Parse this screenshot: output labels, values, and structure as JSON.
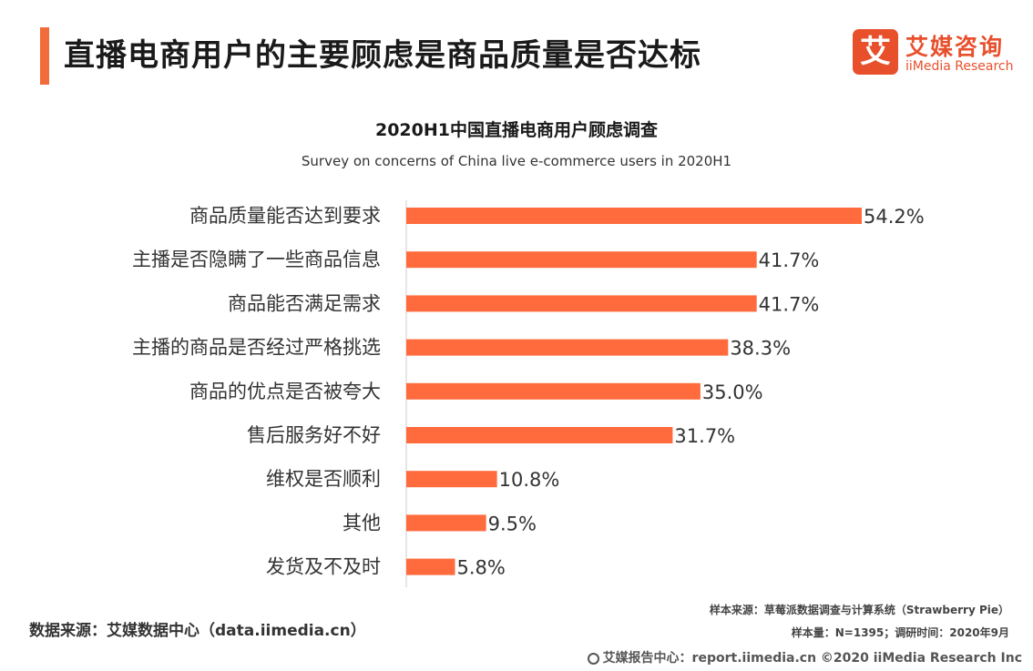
{
  "header": {
    "title": "直播电商用户的主要顾虑是商品质量是否达标",
    "logo_mark": "艾",
    "logo_cn": "艾媒咨询",
    "logo_en": "iiMedia Research"
  },
  "chart_data": {
    "type": "bar",
    "orientation": "horizontal",
    "title": "2020H1中国直播电商用户顾虑调查",
    "subtitle": "Survey on concerns of China live e-commerce users  in 2020H1",
    "categories": [
      "商品质量能否达到要求",
      "主播是否隐瞒了一些商品信息",
      "商品能否满足需求",
      "主播的商品是否经过严格挑选",
      "商品的优点是否被夸大",
      "售后服务好不好",
      "维权是否顺利",
      "其他",
      "发货及不及时"
    ],
    "values": [
      54.2,
      41.7,
      41.7,
      38.3,
      35.0,
      31.7,
      10.8,
      9.5,
      5.8
    ],
    "value_labels": [
      "54.2%",
      "41.7%",
      "41.7%",
      "38.3%",
      "35.0%",
      "31.7%",
      "10.8%",
      "9.5%",
      "5.8%"
    ],
    "unit": "%",
    "color": "#ff6b3d",
    "axis_color": "#cccccc",
    "xlim": [
      0,
      54.2
    ],
    "grid": false,
    "legend": "none"
  },
  "footer": {
    "source": "数据来源：艾媒数据中心（data.iimedia.cn）",
    "sample_source": "样本来源：草莓派数据调查与计算系统（Strawberry Pie）",
    "sample_size": "样本量：N=1395；调研时间：2020年9月",
    "copyright": "艾媒报告中心：report.iimedia.cn  ©2020  iiMedia Research  Inc"
  }
}
